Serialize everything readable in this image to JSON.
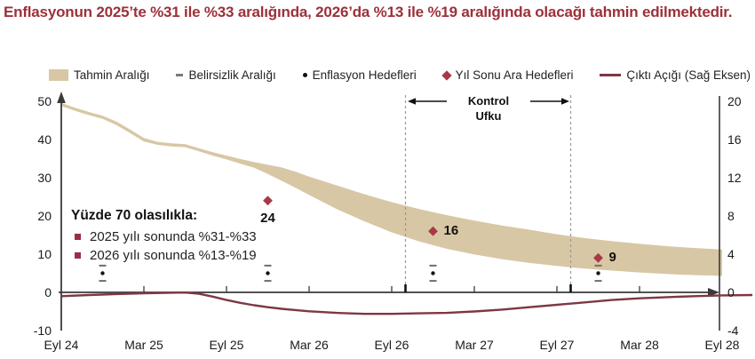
{
  "title": {
    "text": "Enflasyonun 2025’te %31 ile %33 aralığında, 2026’da %13 ile %19 aralığında olacağı tahmin edilmektedir."
  },
  "colors": {
    "title": "#9d3039",
    "band": "#d8c7a5",
    "diamond": "#a83848",
    "line": "#7e3744",
    "axis": "#3a3a3a",
    "dashed": "#999999",
    "dash_marker": "#6e6e6e",
    "bullet": "#9b2d46"
  },
  "legend": {
    "items": [
      {
        "label": "Tahmin Aralığı",
        "marker": "band-swatch"
      },
      {
        "label": "Belirsizlik Aralığı",
        "marker": "dash"
      },
      {
        "label": "Enflasyon Hedefleri",
        "marker": "dot"
      },
      {
        "label": "Yıl Sonu Ara Hedefleri",
        "marker": "diamond"
      },
      {
        "label": "Çıktı Açığı (Sağ Eksen)",
        "marker": "line"
      }
    ]
  },
  "annotation": {
    "heading": "Yüzde 70 olasılıkla:",
    "items": [
      "2025 yılı sonunda %31-%33",
      "2026 yılı sonunda %13-%19"
    ]
  },
  "control_horizon": {
    "label": "Kontrol Ufku"
  },
  "chart_data": {
    "type": "area",
    "title": "Enflasyonun 2025’te %31 ile %33 aralığında, 2026’da %13 ile %19 aralığında olacağı tahmin edilmektedir.",
    "x_axis": {
      "labels": [
        {
          "label": "Eyl 24",
          "month": 0
        },
        {
          "label": "Mar 25",
          "month": 6
        },
        {
          "label": "Eyl 25",
          "month": 12
        },
        {
          "label": "Mar 26",
          "month": 18
        },
        {
          "label": "Eyl 26",
          "month": 24
        },
        {
          "label": "Mar 27",
          "month": 30
        },
        {
          "label": "Eyl 27",
          "month": 36
        },
        {
          "label": "Mar 28",
          "month": 42
        },
        {
          "label": "Eyl 28",
          "month": 48
        }
      ]
    },
    "left_axis": {
      "range": [
        -10,
        50
      ],
      "ticks": [
        50,
        40,
        30,
        20,
        10,
        0,
        -10
      ]
    },
    "right_axis": {
      "range": [
        -4,
        20
      ],
      "ticks": [
        20,
        16,
        12,
        8,
        4,
        0,
        -4
      ]
    },
    "forecast_band": {
      "name": "Tahmin Aralığı",
      "months": [
        0,
        1,
        2,
        3,
        4,
        5,
        6,
        7,
        8,
        9,
        10,
        11,
        12,
        13,
        14,
        15,
        16,
        17,
        18,
        20,
        22,
        24,
        26,
        28,
        30,
        32,
        34,
        36,
        38,
        40,
        42,
        44,
        46,
        48
      ],
      "upper": [
        49.6,
        48.3,
        47.2,
        46.2,
        44.7,
        42.6,
        40.4,
        39.4,
        39.0,
        38.8,
        37.7,
        36.7,
        35.8,
        34.9,
        34.1,
        33.4,
        32.7,
        31.6,
        30.3,
        28.0,
        25.7,
        23.6,
        21.8,
        20.2,
        18.8,
        17.5,
        16.4,
        15.2,
        14.2,
        13.4,
        12.7,
        12.1,
        11.6,
        11.2
      ],
      "lower": [
        48.8,
        47.5,
        46.4,
        45.4,
        43.8,
        41.7,
        39.5,
        38.6,
        38.2,
        38.0,
        36.9,
        35.8,
        34.8,
        33.7,
        32.6,
        31.0,
        29.2,
        27.4,
        25.5,
        21.8,
        18.6,
        15.7,
        13.3,
        11.4,
        9.9,
        8.7,
        7.7,
        6.9,
        6.2,
        5.7,
        5.2,
        4.8,
        4.5,
        4.3
      ]
    },
    "output_gap": {
      "name": "Çıktı Açığı (Sağ Eksen)",
      "axis": "right",
      "months": [
        0,
        2,
        4,
        6,
        8,
        9,
        10,
        11,
        12,
        13,
        14,
        15,
        16,
        17,
        18,
        20,
        22,
        24,
        26,
        28,
        30,
        32,
        34,
        36,
        38,
        40,
        42,
        44,
        46,
        48,
        50.2
      ],
      "values": [
        -0.4,
        -0.28,
        -0.18,
        -0.1,
        -0.04,
        -0.02,
        -0.15,
        -0.45,
        -0.8,
        -1.1,
        -1.35,
        -1.55,
        -1.72,
        -1.85,
        -1.98,
        -2.15,
        -2.25,
        -2.25,
        -2.2,
        -2.15,
        -2.0,
        -1.8,
        -1.55,
        -1.3,
        -1.05,
        -0.8,
        -0.62,
        -0.5,
        -0.4,
        -0.32,
        -0.28
      ]
    },
    "inflation_targets": {
      "name": "Enflasyon Hedefleri",
      "months": [
        3,
        15,
        27,
        39
      ],
      "value": 5
    },
    "uncertainty_range": {
      "name": "Belirsizlik Aralığı",
      "months": [
        3,
        15,
        27,
        39
      ],
      "upper": 7,
      "lower": 3
    },
    "interim_targets": {
      "name": "Yıl Sonu Ara Hedefleri",
      "points": [
        {
          "month": 15,
          "value": 24,
          "label": "24",
          "label_pos": "below"
        },
        {
          "month": 27,
          "value": 16,
          "label": "16",
          "label_pos": "right"
        },
        {
          "month": 39,
          "value": 9,
          "label": "9",
          "label_pos": "right"
        }
      ]
    },
    "control_horizon_lines_months": [
      25,
      37
    ]
  }
}
